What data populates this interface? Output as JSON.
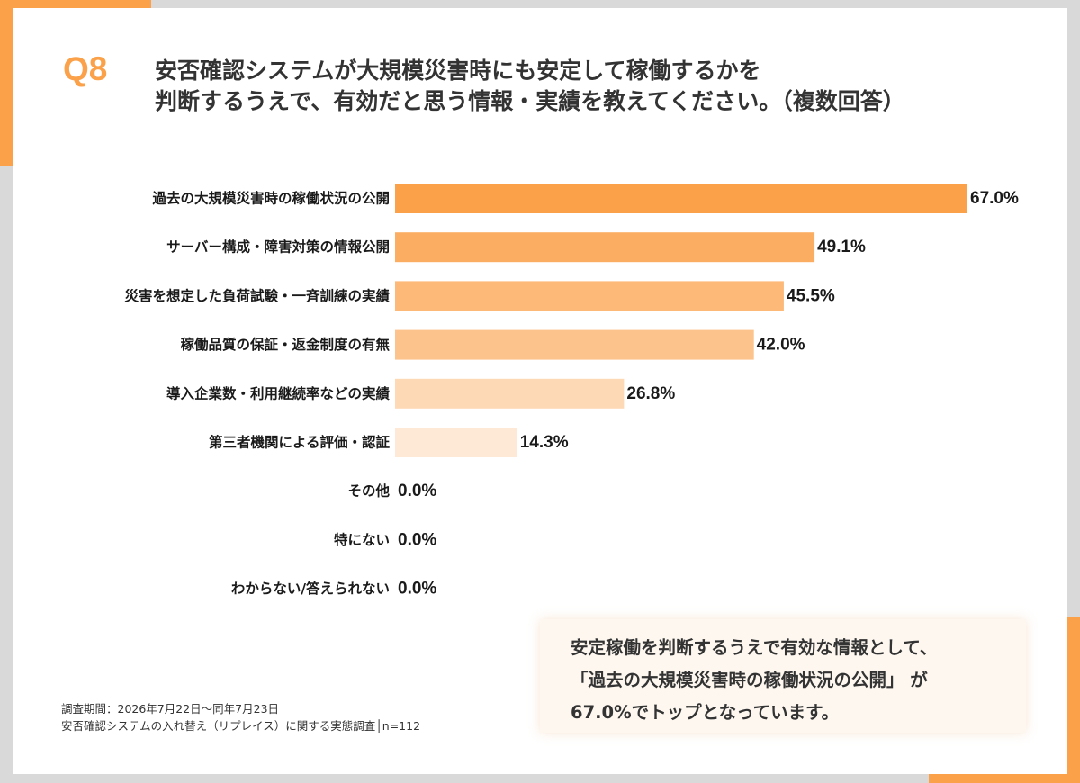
{
  "header": {
    "qlabel": "Q8",
    "question_line1": "安否確認システムが大規模災害時にも安定して稼働するかを",
    "question_line2": "判断するうえで、有効だと思う情報・実績を教えてください。（複数回答）"
  },
  "colors": {
    "accent": "#fba14a",
    "bars": [
      "#fba14a",
      "#fbae62",
      "#fcb977",
      "#fcc38c",
      "#fdd9b6",
      "#fde9d6",
      "#feeede",
      "#feeede",
      "#feeede"
    ]
  },
  "chart_data": {
    "type": "bar",
    "orientation": "horizontal",
    "categories": [
      "過去の大規模災害時の稼働状況の公開",
      "サーバー構成・障害対策の情報公開",
      "災害を想定した負荷試験・一斉訓練の実績",
      "稼働品質の保証・返金制度の有無",
      "導入企業数・利用継続率などの実績",
      "第三者機関による評価・認証",
      "その他",
      "特にない",
      "わからない/答えられない"
    ],
    "values": [
      67.0,
      49.1,
      45.5,
      42.0,
      26.8,
      14.3,
      0.0,
      0.0,
      0.0
    ],
    "value_labels": [
      "67.0%",
      "49.1%",
      "45.5%",
      "42.0%",
      "26.8%",
      "14.3%",
      "0.0%",
      "0.0%",
      "0.0%"
    ],
    "xlim": [
      0,
      67
    ]
  },
  "footnote": {
    "line1": "調査期間：2026年7月22日〜同年7月23日",
    "line2": "安否確認システムの入れ替え（リプレイス）に関する実態調査│n=112"
  },
  "summary": {
    "line1": "安定稼働を判断するうえで有効な情報として、",
    "line2": "「過去の大規模災害時の稼働状況の公開」 が",
    "line3": "67.0%でトップとなっています。"
  }
}
